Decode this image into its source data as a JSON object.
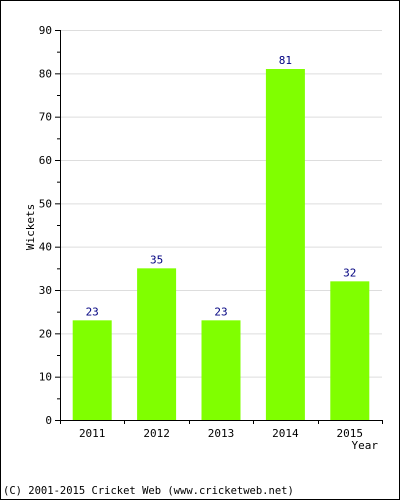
{
  "chart_data": {
    "type": "bar",
    "categories": [
      "2011",
      "2012",
      "2013",
      "2014",
      "2015"
    ],
    "values": [
      23,
      35,
      23,
      81,
      32
    ],
    "title": "",
    "xlabel": "Year",
    "ylabel": "Wickets",
    "ylim": [
      0,
      90
    ],
    "yticks": [
      0,
      10,
      20,
      30,
      40,
      50,
      60,
      70,
      80,
      90
    ],
    "grid": true,
    "data_labels": true,
    "legend": "none"
  },
  "colors": {
    "bar": "#80ff00",
    "data_label": "#000080",
    "grid": "#dddddd",
    "axis": "#000000"
  },
  "footer": {
    "copyright": "(C) 2001-2015 Cricket Web (www.cricketweb.net)"
  }
}
